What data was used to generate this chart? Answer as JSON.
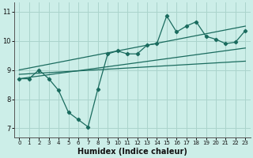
{
  "xlabel": "Humidex (Indice chaleur)",
  "bg_color": "#cceee8",
  "line_color": "#1a6b5e",
  "grid_color": "#aad4cc",
  "xlim": [
    -0.5,
    23.5
  ],
  "ylim": [
    6.7,
    11.3
  ],
  "xticks": [
    0,
    1,
    2,
    3,
    4,
    5,
    6,
    7,
    8,
    9,
    10,
    11,
    12,
    13,
    14,
    15,
    16,
    17,
    18,
    19,
    20,
    21,
    22,
    23
  ],
  "yticks": [
    7,
    8,
    9,
    10,
    11
  ],
  "data_x": [
    0,
    1,
    2,
    3,
    4,
    5,
    6,
    7,
    8,
    9,
    10,
    11,
    12,
    13,
    14,
    15,
    16,
    17,
    18,
    19,
    20,
    21,
    22,
    23
  ],
  "data_y": [
    8.7,
    8.7,
    9.0,
    8.7,
    8.3,
    7.55,
    7.3,
    7.05,
    8.35,
    9.55,
    9.65,
    9.55,
    9.55,
    9.85,
    9.9,
    10.85,
    10.3,
    10.5,
    10.65,
    10.15,
    10.05,
    9.9,
    9.95,
    10.35
  ],
  "trend1_x": [
    0,
    23
  ],
  "trend1_y": [
    9.0,
    10.5
  ],
  "trend2_x": [
    0,
    23
  ],
  "trend2_y": [
    8.7,
    9.75
  ],
  "trend3_x": [
    0,
    23
  ],
  "trend3_y": [
    8.85,
    9.3
  ]
}
